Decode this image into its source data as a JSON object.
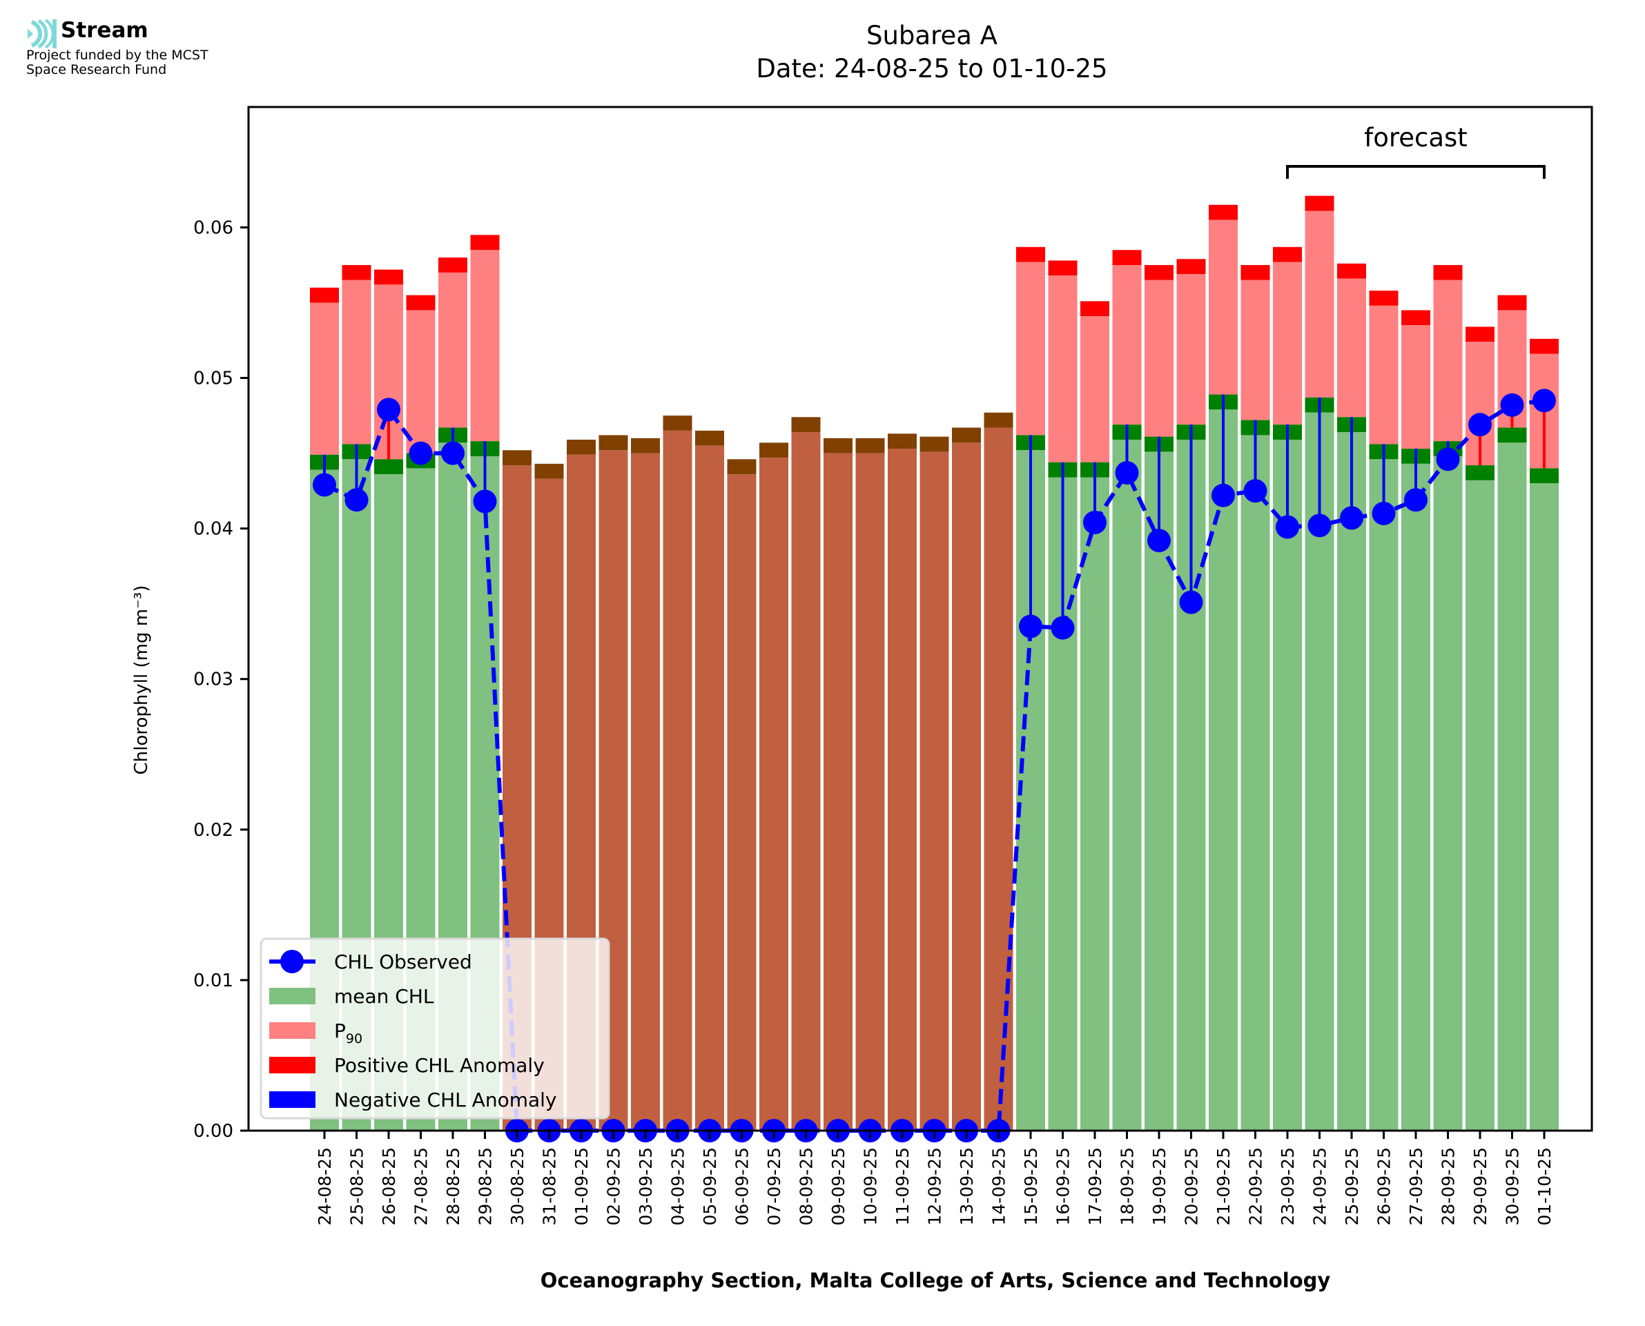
{
  "logo": {
    "name": "Stream",
    "subtitle_line1": "Project funded by the MCST",
    "subtitle_line2": "Space Research Fund",
    "icon": "stream-waves-icon",
    "icon_color": "#7fd9d9"
  },
  "chart_data": {
    "type": "bar",
    "title": "Subarea A",
    "subtitle": "Date: 24-08-25 to 01-10-25",
    "xlabel": "Oceanography Section, Malta College of Arts, Science and Technology",
    "ylabel": "Chlorophyll (mg m⁻³)",
    "ylim": [
      0,
      0.068
    ],
    "yticks": [
      "0.00",
      "0.01",
      "0.02",
      "0.03",
      "0.04",
      "0.05",
      "0.06"
    ],
    "ytick_values": [
      0,
      0.01,
      0.02,
      0.03,
      0.04,
      0.05,
      0.06
    ],
    "grid": false,
    "legend_position": "lower-left",
    "annotation": {
      "text": "forecast",
      "from": "23-09-25",
      "to": "01-10-25"
    },
    "colors": {
      "mean": "#80c080",
      "mean_cap": "#008000",
      "p90": "#ff8080",
      "p90_cap": "#ff0000",
      "missing_mean": "#c06040",
      "missing_cap": "#804000",
      "observed": "#0000ff",
      "positive_anomaly": "#ff0000",
      "negative_anomaly": "#0000ff"
    },
    "legend": [
      {
        "label": "CHL Observed",
        "kind": "line-marker",
        "color": "#0000ff"
      },
      {
        "label": "mean CHL",
        "kind": "patch",
        "color": "#80c080"
      },
      {
        "label": "P",
        "sub": "90",
        "kind": "patch",
        "color": "#ff8080"
      },
      {
        "label": "Positive CHL Anomaly",
        "kind": "patch",
        "color": "#ff0000"
      },
      {
        "label": "Negative CHL Anomaly",
        "kind": "patch",
        "color": "#0000ff"
      }
    ],
    "categories": [
      "24-08-25",
      "25-08-25",
      "26-08-25",
      "27-08-25",
      "28-08-25",
      "29-08-25",
      "30-08-25",
      "31-08-25",
      "01-09-25",
      "02-09-25",
      "03-09-25",
      "04-09-25",
      "05-09-25",
      "06-09-25",
      "07-09-25",
      "08-09-25",
      "09-09-25",
      "10-09-25",
      "11-09-25",
      "12-09-25",
      "13-09-25",
      "14-09-25",
      "15-09-25",
      "16-09-25",
      "17-09-25",
      "18-09-25",
      "19-09-25",
      "20-09-25",
      "21-09-25",
      "22-09-25",
      "23-09-25",
      "24-09-25",
      "25-09-25",
      "26-09-25",
      "27-09-25",
      "28-09-25",
      "29-09-25",
      "30-09-25",
      "01-10-25"
    ],
    "series": [
      {
        "name": "mean CHL",
        "values": [
          0.0439,
          0.0446,
          0.0436,
          0.044,
          0.0457,
          0.0448,
          0.0442,
          0.0433,
          0.0449,
          0.0452,
          0.045,
          0.0465,
          0.0455,
          0.0436,
          0.0447,
          0.0464,
          0.045,
          0.045,
          0.0453,
          0.0451,
          0.0457,
          0.0467,
          0.0452,
          0.0434,
          0.0434,
          0.0459,
          0.0451,
          0.0459,
          0.0479,
          0.0462,
          0.0459,
          0.0477,
          0.0464,
          0.0446,
          0.0443,
          0.0448,
          0.0432,
          0.0457,
          0.043
        ]
      },
      {
        "name": "P90",
        "values": [
          0.055,
          0.0565,
          0.0562,
          0.0545,
          0.057,
          0.0585,
          null,
          null,
          null,
          null,
          null,
          null,
          null,
          null,
          null,
          null,
          null,
          null,
          null,
          null,
          null,
          null,
          0.0577,
          0.0568,
          0.0541,
          0.0575,
          0.0565,
          0.0569,
          0.0605,
          0.0565,
          0.0577,
          0.0611,
          0.0566,
          0.0548,
          0.0535,
          0.0565,
          0.0524,
          0.0545,
          0.0516
        ]
      },
      {
        "name": "CHL Observed",
        "values": [
          0.0429,
          0.0419,
          0.0479,
          0.045,
          0.045,
          0.0418,
          0,
          0,
          0,
          0,
          0,
          0,
          0,
          0,
          0,
          0,
          0,
          0,
          0,
          0,
          0,
          0,
          0.0335,
          0.0334,
          0.0404,
          0.0437,
          0.0392,
          0.0351,
          0.0422,
          0.0425,
          0.0401,
          0.0402,
          0.0407,
          0.041,
          0.0419,
          0.0446,
          0.0469,
          0.0482,
          0.0485
        ]
      }
    ],
    "cap_height": 0.001
  }
}
